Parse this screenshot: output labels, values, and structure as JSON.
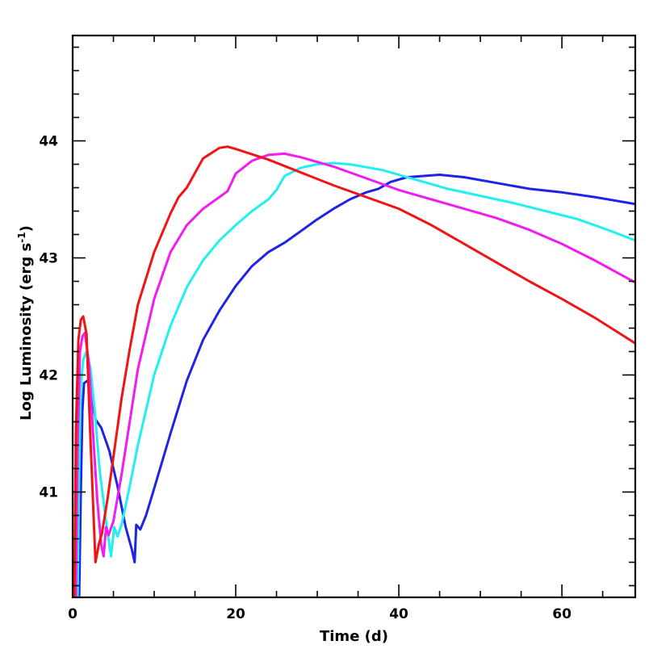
{
  "chart_data": {
    "type": "line",
    "xlabel": "Time (d)",
    "ylabel_main": "Log Luminosity (erg s",
    "ylabel_sup": "-1",
    "ylabel_close": ")",
    "xlim": [
      0,
      69
    ],
    "ylim": [
      40.1,
      44.9
    ],
    "x_ticks_major": [
      0,
      20,
      40,
      60
    ],
    "x_ticks_minor_step": 5,
    "x_tick_labels": [
      "0",
      "20",
      "40",
      "60"
    ],
    "y_ticks_major": [
      41,
      42,
      43,
      44
    ],
    "y_ticks_minor_step": 0.2,
    "y_tick_labels": [
      "41",
      "42",
      "43",
      "44"
    ],
    "grid": false,
    "series": [
      {
        "color": "#1f23e6",
        "points": [
          [
            0.8,
            40.1
          ],
          [
            1.0,
            41.0
          ],
          [
            1.2,
            41.7
          ],
          [
            1.4,
            41.93
          ],
          [
            1.8,
            41.95
          ],
          [
            2.2,
            41.9
          ],
          [
            2.8,
            41.62
          ],
          [
            3.5,
            41.55
          ],
          [
            4.5,
            41.35
          ],
          [
            5.5,
            41.05
          ],
          [
            6.5,
            40.7
          ],
          [
            7.3,
            40.5
          ],
          [
            7.6,
            40.4
          ],
          [
            7.8,
            40.72
          ],
          [
            8.3,
            40.68
          ],
          [
            9,
            40.8
          ],
          [
            10,
            41.03
          ],
          [
            12,
            41.5
          ],
          [
            14,
            41.95
          ],
          [
            16,
            42.3
          ],
          [
            18,
            42.55
          ],
          [
            20,
            42.76
          ],
          [
            22,
            42.93
          ],
          [
            24,
            43.05
          ],
          [
            26,
            43.13
          ],
          [
            28,
            43.23
          ],
          [
            30,
            43.33
          ],
          [
            32,
            43.42
          ],
          [
            34,
            43.5
          ],
          [
            36,
            43.56
          ],
          [
            37.5,
            43.59
          ],
          [
            39,
            43.65
          ],
          [
            41,
            43.69
          ],
          [
            43,
            43.7
          ],
          [
            45,
            43.71
          ],
          [
            48,
            43.69
          ],
          [
            52,
            43.64
          ],
          [
            56,
            43.59
          ],
          [
            60,
            43.56
          ],
          [
            64,
            43.52
          ],
          [
            69,
            43.46
          ]
        ]
      },
      {
        "color": "#22f0f0",
        "points": [
          [
            0.6,
            40.1
          ],
          [
            0.8,
            41.2
          ],
          [
            1.0,
            41.9
          ],
          [
            1.3,
            42.13
          ],
          [
            1.7,
            42.2
          ],
          [
            2.2,
            42.05
          ],
          [
            2.7,
            41.7
          ],
          [
            3.3,
            41.2
          ],
          [
            4.0,
            40.8
          ],
          [
            4.7,
            40.45
          ],
          [
            5.1,
            40.7
          ],
          [
            5.5,
            40.62
          ],
          [
            6,
            40.72
          ],
          [
            7,
            41.05
          ],
          [
            8,
            41.4
          ],
          [
            10,
            42.0
          ],
          [
            12,
            42.42
          ],
          [
            14,
            42.75
          ],
          [
            16,
            42.98
          ],
          [
            18,
            43.15
          ],
          [
            20,
            43.28
          ],
          [
            22,
            43.4
          ],
          [
            24,
            43.5
          ],
          [
            25,
            43.58
          ],
          [
            26,
            43.7
          ],
          [
            28,
            43.77
          ],
          [
            30,
            43.8
          ],
          [
            32,
            43.81
          ],
          [
            34,
            43.8
          ],
          [
            38,
            43.75
          ],
          [
            42,
            43.67
          ],
          [
            46,
            43.59
          ],
          [
            50,
            43.53
          ],
          [
            54,
            43.47
          ],
          [
            58,
            43.4
          ],
          [
            62,
            43.33
          ],
          [
            66,
            43.23
          ],
          [
            69,
            43.15
          ]
        ]
      },
      {
        "color": "#f01cf0",
        "points": [
          [
            0.4,
            40.1
          ],
          [
            0.6,
            41.4
          ],
          [
            0.9,
            42.2
          ],
          [
            1.2,
            42.33
          ],
          [
            1.5,
            42.36
          ],
          [
            2.0,
            42.1
          ],
          [
            2.5,
            41.5
          ],
          [
            3.0,
            40.95
          ],
          [
            3.5,
            40.55
          ],
          [
            3.8,
            40.45
          ],
          [
            4.1,
            40.7
          ],
          [
            4.4,
            40.63
          ],
          [
            5,
            40.75
          ],
          [
            6,
            41.15
          ],
          [
            7,
            41.6
          ],
          [
            8,
            42.05
          ],
          [
            10,
            42.65
          ],
          [
            12,
            43.05
          ],
          [
            14,
            43.28
          ],
          [
            16,
            43.42
          ],
          [
            18,
            43.52
          ],
          [
            19,
            43.57
          ],
          [
            20,
            43.72
          ],
          [
            22,
            43.83
          ],
          [
            24,
            43.88
          ],
          [
            26,
            43.89
          ],
          [
            28,
            43.86
          ],
          [
            32,
            43.78
          ],
          [
            36,
            43.68
          ],
          [
            40,
            43.58
          ],
          [
            44,
            43.5
          ],
          [
            48,
            43.42
          ],
          [
            52,
            43.34
          ],
          [
            56,
            43.24
          ],
          [
            60,
            43.12
          ],
          [
            64,
            42.98
          ],
          [
            69,
            42.79
          ]
        ]
      },
      {
        "color": "#f01414",
        "points": [
          [
            0.2,
            40.1
          ],
          [
            0.4,
            41.5
          ],
          [
            0.7,
            42.3
          ],
          [
            1.0,
            42.47
          ],
          [
            1.3,
            42.5
          ],
          [
            1.7,
            42.35
          ],
          [
            2.1,
            41.6
          ],
          [
            2.5,
            40.9
          ],
          [
            2.8,
            40.4
          ],
          [
            3.2,
            40.55
          ],
          [
            3.6,
            40.65
          ],
          [
            4.3,
            40.95
          ],
          [
            5,
            41.3
          ],
          [
            6,
            41.8
          ],
          [
            7,
            42.22
          ],
          [
            8,
            42.6
          ],
          [
            10,
            43.05
          ],
          [
            12,
            43.38
          ],
          [
            13,
            43.52
          ],
          [
            14,
            43.6
          ],
          [
            16,
            43.85
          ],
          [
            18,
            43.94
          ],
          [
            19,
            43.95
          ],
          [
            20,
            43.93
          ],
          [
            24,
            43.84
          ],
          [
            28,
            43.73
          ],
          [
            32,
            43.62
          ],
          [
            36,
            43.52
          ],
          [
            40,
            43.42
          ],
          [
            44,
            43.28
          ],
          [
            48,
            43.12
          ],
          [
            52,
            42.96
          ],
          [
            56,
            42.8
          ],
          [
            60,
            42.65
          ],
          [
            64,
            42.49
          ],
          [
            69,
            42.27
          ]
        ]
      }
    ]
  }
}
